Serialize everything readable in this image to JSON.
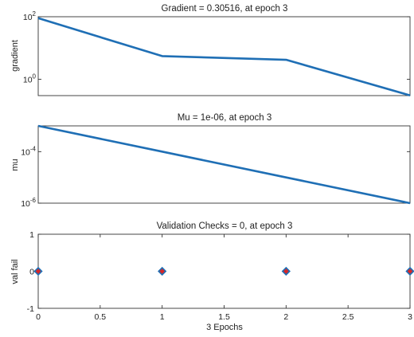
{
  "chart_data": [
    {
      "type": "line",
      "title": "Gradient = 0.30516, at epoch 3",
      "ylabel": "gradient",
      "xlabel": "",
      "yscale": "log",
      "ylim": [
        0.3,
        100
      ],
      "xlim": [
        0,
        3
      ],
      "yticks": [
        {
          "value": 1,
          "base": "10",
          "exp": "0"
        },
        {
          "value": 100,
          "base": "10",
          "exp": "2"
        }
      ],
      "xticks": [],
      "series": [
        {
          "x": [
            0,
            1,
            2,
            3
          ],
          "y": [
            90,
            5.5,
            4.2,
            0.30516
          ],
          "color": "#1f6fb5",
          "marker": "none"
        }
      ]
    },
    {
      "type": "line",
      "title": "Mu = 1e-06, at epoch 3",
      "ylabel": "mu",
      "xlabel": "",
      "yscale": "log",
      "ylim": [
        1e-06,
        0.001
      ],
      "xlim": [
        0,
        3
      ],
      "yticks": [
        {
          "value": 1e-06,
          "base": "10",
          "exp": "-6"
        },
        {
          "value": 0.0001,
          "base": "10",
          "exp": "-4"
        }
      ],
      "xticks": [],
      "series": [
        {
          "x": [
            0,
            1,
            2,
            3
          ],
          "y": [
            0.001,
            0.0001,
            1e-05,
            1e-06
          ],
          "color": "#1f6fb5",
          "marker": "none"
        }
      ]
    },
    {
      "type": "scatter",
      "title": "Validation Checks = 0, at epoch 3",
      "ylabel": "val fail",
      "xlabel": "3 Epochs",
      "yscale": "linear",
      "ylim": [
        -1,
        1
      ],
      "xlim": [
        0,
        3
      ],
      "yticks": [
        {
          "value": -1,
          "label": "-1"
        },
        {
          "value": 0,
          "label": "0"
        },
        {
          "value": 1,
          "label": "1"
        }
      ],
      "xticks": [
        {
          "value": 0,
          "label": "0"
        },
        {
          "value": 0.5,
          "label": "0.5"
        },
        {
          "value": 1,
          "label": "1"
        },
        {
          "value": 1.5,
          "label": "1.5"
        },
        {
          "value": 2,
          "label": "2"
        },
        {
          "value": 2.5,
          "label": "2.5"
        },
        {
          "value": 3,
          "label": "3"
        }
      ],
      "series": [
        {
          "x": [
            0,
            1,
            2,
            3
          ],
          "y": [
            0,
            0,
            0,
            0
          ],
          "color": "#1f6fb5",
          "marker_fill": "#d62728",
          "marker": "diamond"
        }
      ]
    }
  ]
}
